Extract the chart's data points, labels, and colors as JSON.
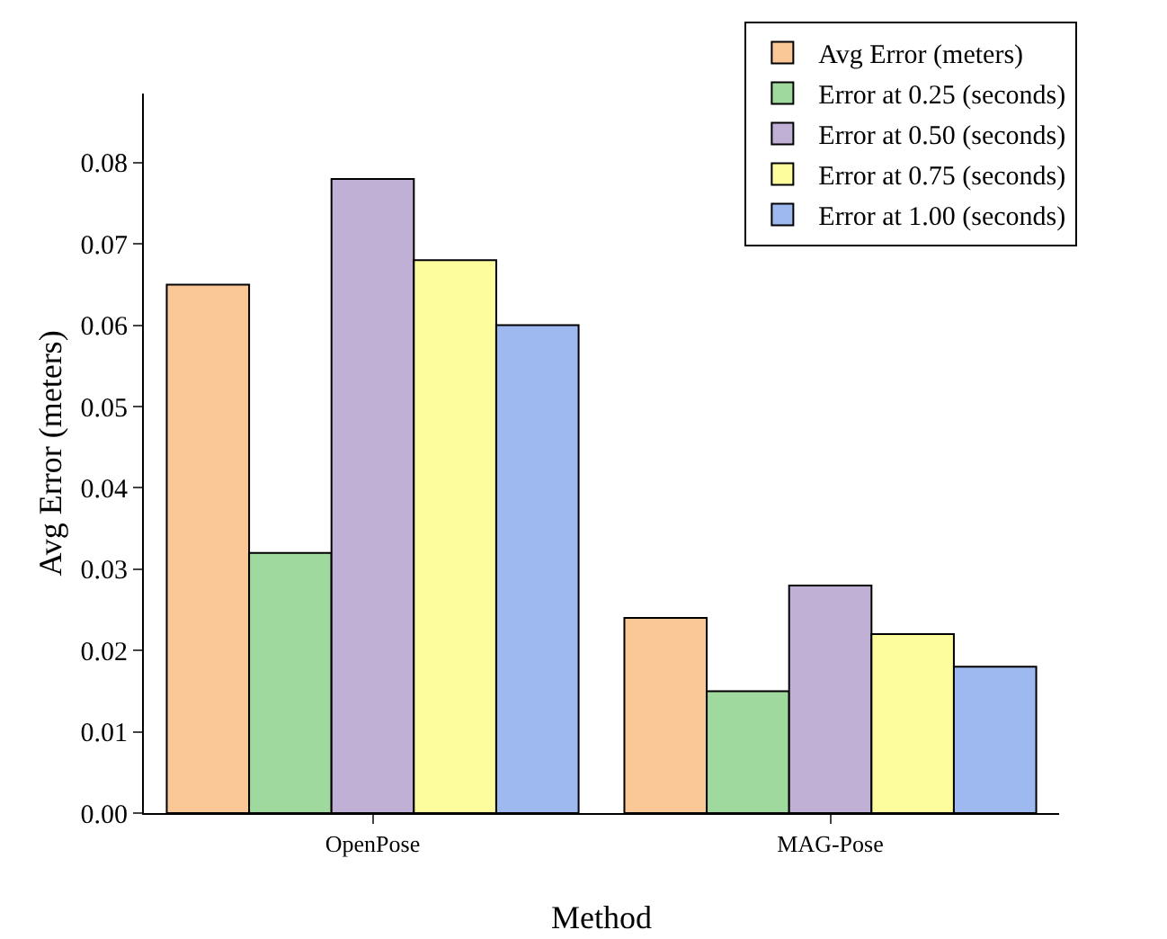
{
  "chart_data": {
    "type": "bar",
    "xlabel": "Method",
    "ylabel": "Avg Error (meters)",
    "categories": [
      "OpenPose",
      "MAG-Pose"
    ],
    "series": [
      {
        "name": "Avg Error (meters)",
        "color": "#f9c896",
        "values": [
          0.065,
          0.024
        ]
      },
      {
        "name": "Error at 0.25 (seconds)",
        "color": "#a0d99e",
        "values": [
          0.032,
          0.015
        ]
      },
      {
        "name": "Error at 0.50 (seconds)",
        "color": "#c0b0d6",
        "values": [
          0.078,
          0.028
        ]
      },
      {
        "name": "Error at 0.75 (seconds)",
        "color": "#fdfd9e",
        "values": [
          0.068,
          0.022
        ]
      },
      {
        "name": "Error at 1.00 (seconds)",
        "color": "#9db9ef",
        "values": [
          0.06,
          0.018
        ]
      }
    ],
    "ylim": [
      0,
      0.0885
    ],
    "yticks": [
      {
        "value": 0,
        "label": "0.00"
      },
      {
        "value": 0.01,
        "label": "0.01"
      },
      {
        "value": 0.02,
        "label": "0.02"
      },
      {
        "value": 0.03,
        "label": "0.03"
      },
      {
        "value": 0.04,
        "label": "0.04"
      },
      {
        "value": 0.05,
        "label": "0.05"
      },
      {
        "value": 0.06,
        "label": "0.06"
      },
      {
        "value": 0.07,
        "label": "0.07"
      },
      {
        "value": 0.08,
        "label": "0.08"
      }
    ],
    "grid": false,
    "legend": "top right"
  }
}
